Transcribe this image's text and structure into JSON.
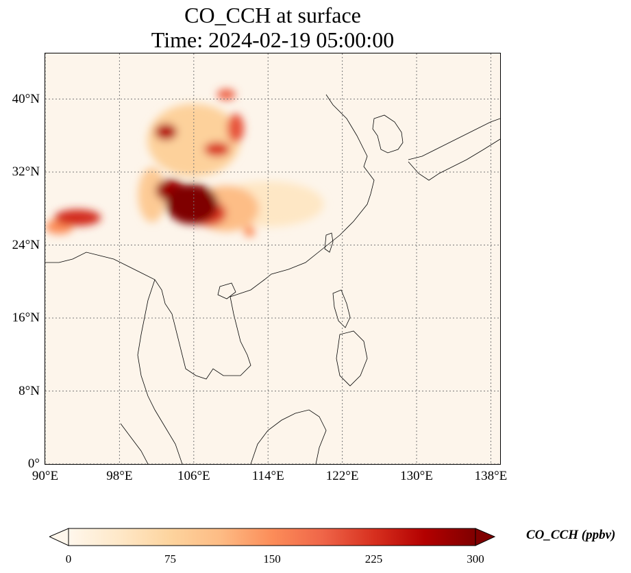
{
  "title": "CO_CCH at surface",
  "subtitle": "Time: 2024-02-19 05:00:00",
  "map": {
    "extent": {
      "lon_min": 90,
      "lon_max": 139,
      "lat_min": 0,
      "lat_max": 45
    },
    "lat_ticks": [
      {
        "value": 0,
        "label": "0°"
      },
      {
        "value": 8,
        "label": "8°N"
      },
      {
        "value": 16,
        "label": "16°N"
      },
      {
        "value": 24,
        "label": "24°N"
      },
      {
        "value": 32,
        "label": "32°N"
      },
      {
        "value": 40,
        "label": "40°N"
      }
    ],
    "lon_ticks": [
      {
        "value": 90,
        "label": "90°E"
      },
      {
        "value": 98,
        "label": "98°E"
      },
      {
        "value": 106,
        "label": "106°E"
      },
      {
        "value": 114,
        "label": "114°E"
      },
      {
        "value": 122,
        "label": "122°E"
      },
      {
        "value": 130,
        "label": "130°E"
      },
      {
        "value": 138,
        "label": "138°E"
      }
    ],
    "gridlines": true,
    "background_color": "#fdf5eb"
  },
  "colorbar": {
    "label": "CO_CCH (ppbv)",
    "min": 0,
    "max": 300,
    "ticks": [
      "0",
      "75",
      "150",
      "225",
      "300"
    ],
    "colormap": [
      "#fff7ec",
      "#fee8c8",
      "#fdd49e",
      "#fdbb84",
      "#fc8d59",
      "#ef6548",
      "#d7301f",
      "#b30000",
      "#7f0000"
    ],
    "extend": "both"
  },
  "field_blobs": [
    {
      "lon": 105.8,
      "lat": 28.5,
      "value": 320,
      "rx": 2.8,
      "ry": 2.2
    },
    {
      "lon": 103.5,
      "lat": 30.0,
      "value": 280,
      "rx": 1.6,
      "ry": 1.2
    },
    {
      "lon": 107.5,
      "lat": 27.5,
      "value": 220,
      "rx": 2.0,
      "ry": 1.4
    },
    {
      "lon": 109.5,
      "lat": 28.0,
      "value": 110,
      "rx": 3.5,
      "ry": 2.5
    },
    {
      "lon": 103.0,
      "lat": 36.4,
      "value": 260,
      "rx": 1.2,
      "ry": 0.9
    },
    {
      "lon": 108.5,
      "lat": 34.5,
      "value": 220,
      "rx": 1.4,
      "ry": 0.8
    },
    {
      "lon": 110.5,
      "lat": 36.8,
      "value": 200,
      "rx": 0.9,
      "ry": 1.6
    },
    {
      "lon": 109.5,
      "lat": 40.5,
      "value": 190,
      "rx": 1.0,
      "ry": 0.6
    },
    {
      "lon": 106.0,
      "lat": 35.5,
      "value": 80,
      "rx": 5.0,
      "ry": 4.0
    },
    {
      "lon": 93.5,
      "lat": 27.0,
      "value": 230,
      "rx": 2.5,
      "ry": 0.9
    },
    {
      "lon": 91.5,
      "lat": 26.0,
      "value": 150,
      "rx": 1.5,
      "ry": 0.8
    },
    {
      "lon": 112.0,
      "lat": 25.5,
      "value": 150,
      "rx": 0.6,
      "ry": 0.6
    },
    {
      "lon": 114.0,
      "lat": 28.5,
      "value": 40,
      "rx": 6.0,
      "ry": 2.5
    },
    {
      "lon": 101.5,
      "lat": 29.5,
      "value": 90,
      "rx": 1.5,
      "ry": 3.0
    }
  ]
}
